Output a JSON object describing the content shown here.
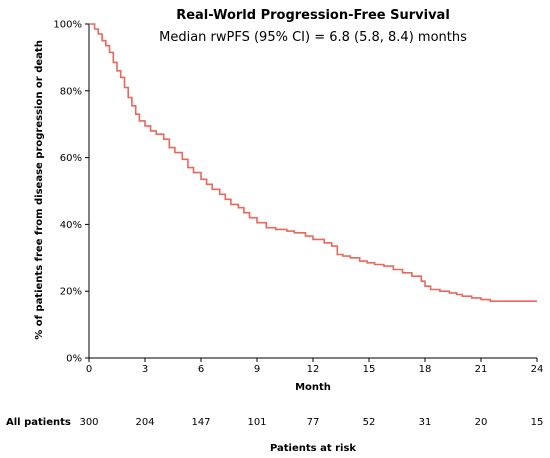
{
  "chart_data": {
    "type": "line",
    "title": "Real-World Progression-Free Survival",
    "subtitle": "Median rwPFS (95% CI) = 6.8 (5.8, 8.4) months",
    "xlabel": "Month",
    "ylabel": "% of patients free from disease progression or death",
    "xlim": [
      0,
      24
    ],
    "ylim": [
      0,
      100
    ],
    "x_ticks": [
      "0",
      "3",
      "6",
      "9",
      "12",
      "15",
      "18",
      "21",
      "24"
    ],
    "y_ticks": [
      "0%",
      "20%",
      "40%",
      "60%",
      "80%",
      "100%"
    ],
    "grid": false,
    "step": true,
    "line_color": "#e8685e",
    "series": [
      {
        "x": [
          0,
          0.3,
          0.5,
          0.7,
          0.9,
          1.1,
          1.3,
          1.5,
          1.7,
          1.9,
          2.1,
          2.3,
          2.5,
          2.7,
          3.0,
          3.3,
          3.6,
          4.0,
          4.3,
          4.6,
          5.0,
          5.3,
          5.6,
          6.0,
          6.3,
          6.6,
          7.0,
          7.3,
          7.6,
          8.0,
          8.3,
          8.6,
          9.0,
          9.5,
          10.0,
          10.6,
          11.0,
          11.6,
          12.0,
          12.6,
          13.0,
          13.3,
          13.6,
          14.0,
          14.5,
          14.9,
          15.3,
          15.8,
          16.3,
          16.8,
          17.3,
          17.8,
          18.0,
          18.3,
          18.8,
          19.3,
          19.7,
          20.0,
          20.5,
          21.0,
          21.5,
          22.0,
          23.0,
          24.0
        ],
        "y": [
          100,
          98.5,
          97,
          95,
          93.5,
          91.5,
          88.5,
          86,
          84,
          81,
          78,
          75.5,
          73,
          71,
          69.5,
          68,
          67,
          65.5,
          63,
          61.5,
          59.5,
          57,
          55.5,
          53.5,
          52,
          50.5,
          49,
          47.5,
          46,
          45,
          43.5,
          42,
          40.5,
          39,
          38.5,
          38,
          37.5,
          36.5,
          35.5,
          34.5,
          33.5,
          31,
          30.5,
          30,
          29,
          28.5,
          28,
          27.5,
          26.5,
          25.5,
          24.5,
          23,
          21.5,
          20.5,
          20,
          19.5,
          19,
          18.5,
          18,
          17.5,
          17,
          17,
          17,
          17
        ]
      }
    ],
    "at_risk": {
      "label": "All patients",
      "title": "Patients at risk",
      "months": [
        0,
        3,
        6,
        9,
        12,
        15,
        18,
        21,
        24
      ],
      "counts": [
        "300",
        "204",
        "147",
        "101",
        "77",
        "52",
        "31",
        "20",
        "15"
      ]
    }
  }
}
